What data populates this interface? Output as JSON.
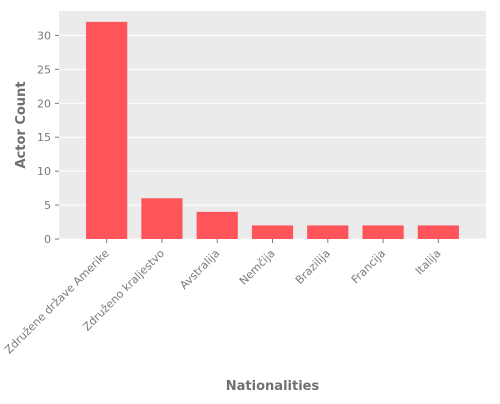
{
  "chart_data": {
    "type": "bar",
    "categories": [
      "Združene države Amerike",
      "Združeno kraljestvo",
      "Avstralija",
      "Nemčija",
      "Brazilija",
      "Francija",
      "Italija"
    ],
    "values": [
      32,
      6,
      4,
      2,
      2,
      2,
      2
    ],
    "title": "",
    "xlabel": "Nationalities",
    "ylabel": "Actor Count",
    "ylim": [
      0,
      33.6
    ],
    "yticks": [
      0,
      5,
      10,
      15,
      20,
      25,
      30
    ],
    "grid": true,
    "legend": "none",
    "bar_color": "#ff5459",
    "background_color": "#ebebeb",
    "grid_color": "#ffffff"
  }
}
